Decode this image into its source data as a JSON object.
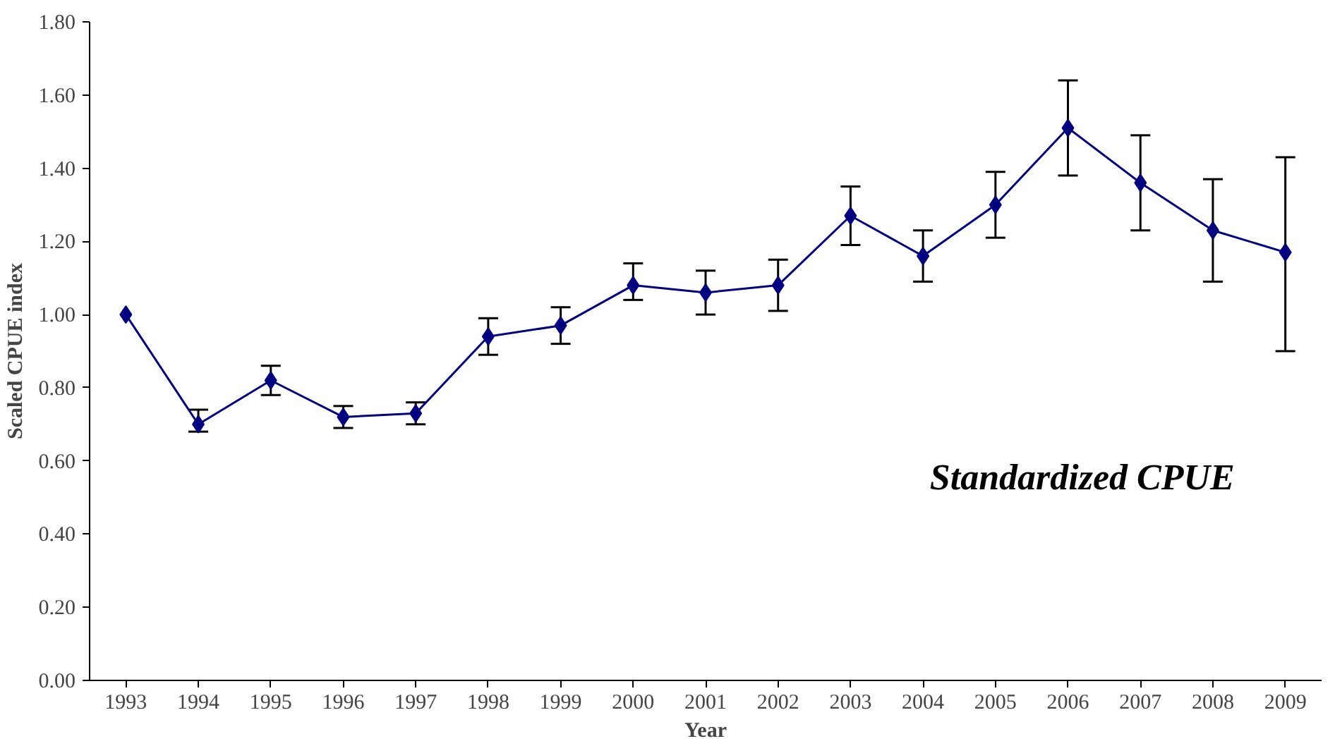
{
  "chart_data": {
    "type": "line",
    "xlabel": "Year",
    "ylabel": "Scaled CPUE index",
    "categories": [
      "1993",
      "1994",
      "1995",
      "1996",
      "1997",
      "1998",
      "1999",
      "2000",
      "2001",
      "2002",
      "2003",
      "2004",
      "2005",
      "2006",
      "2007",
      "2008",
      "2009"
    ],
    "series": [
      {
        "color": "#000080",
        "values": [
          1.0,
          0.7,
          0.82,
          0.72,
          0.73,
          0.94,
          0.97,
          1.08,
          1.06,
          1.08,
          1.27,
          1.16,
          1.3,
          1.51,
          1.36,
          1.23,
          1.17
        ],
        "errors": [
          null,
          [
            0.68,
            0.74
          ],
          [
            0.78,
            0.86
          ],
          [
            0.69,
            0.75
          ],
          [
            0.7,
            0.76
          ],
          [
            0.89,
            0.99
          ],
          [
            0.92,
            1.02
          ],
          [
            1.04,
            1.14
          ],
          [
            1.0,
            1.12
          ],
          [
            1.01,
            1.15
          ],
          [
            1.19,
            1.35
          ],
          [
            1.09,
            1.23
          ],
          [
            1.21,
            1.39
          ],
          [
            1.38,
            1.64
          ],
          [
            1.23,
            1.49
          ],
          [
            1.09,
            1.37
          ],
          [
            0.9,
            1.43
          ]
        ]
      }
    ],
    "ylim": [
      0,
      1.8
    ],
    "yticks": [
      {
        "value": 0,
        "label": "0.00"
      },
      {
        "value": 0.2,
        "label": "0.20"
      },
      {
        "value": 0.4,
        "label": "0.40"
      },
      {
        "value": 0.6,
        "label": "0.60"
      },
      {
        "value": 0.8,
        "label": "0.80"
      },
      {
        "value": 1.0,
        "label": "1.00"
      },
      {
        "value": 1.2,
        "label": "1.20"
      },
      {
        "value": 1.4,
        "label": "1.40"
      },
      {
        "value": 1.6,
        "label": "1.60"
      },
      {
        "value": 1.8,
        "label": "1.80"
      }
    ],
    "marker": "diamond",
    "line_style": "solid",
    "annotations": [
      "Standardized CPUE"
    ]
  }
}
